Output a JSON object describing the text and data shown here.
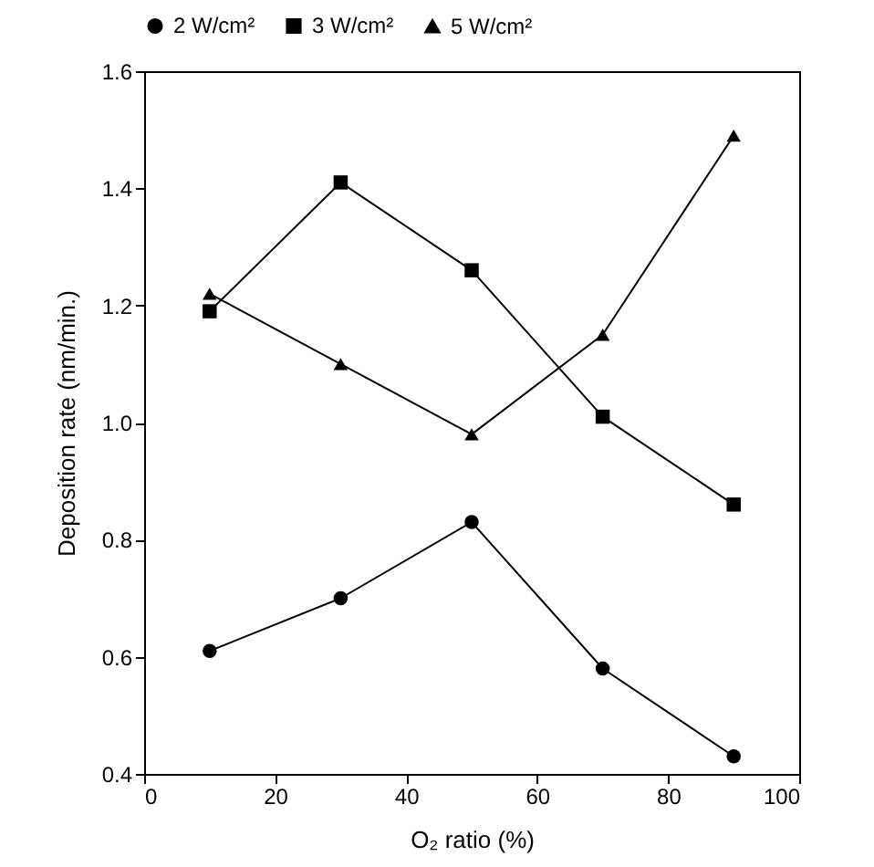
{
  "chart_data": {
    "type": "line",
    "xlabel": "O₂ ratio (%)",
    "ylabel": "Deposition rate (nm/min.)",
    "x": [
      10,
      30,
      50,
      70,
      90
    ],
    "series": [
      {
        "name": "2 W/cm²",
        "color": "#000000",
        "marker": "circle",
        "values": [
          0.61,
          0.7,
          0.83,
          0.58,
          0.43
        ]
      },
      {
        "name": "3 W/cm²",
        "color": "#000000",
        "marker": "square",
        "values": [
          1.19,
          1.41,
          1.26,
          1.01,
          0.86
        ]
      },
      {
        "name": "5 W/cm²",
        "color": "#000000",
        "marker": "triangle",
        "values": [
          1.22,
          1.1,
          0.98,
          1.15,
          1.49
        ]
      }
    ],
    "xlim": [
      0,
      100
    ],
    "xticks": [
      0,
      20,
      40,
      60,
      80,
      100
    ],
    "ylim": [
      0.4,
      1.6
    ],
    "yticks": [
      0.4,
      0.6,
      0.8,
      {
        "value": 1.0,
        "label": "1.0"
      },
      1.2,
      1.4,
      1.6
    ],
    "grid": false,
    "legend": "top",
    "line_style": "solid"
  }
}
